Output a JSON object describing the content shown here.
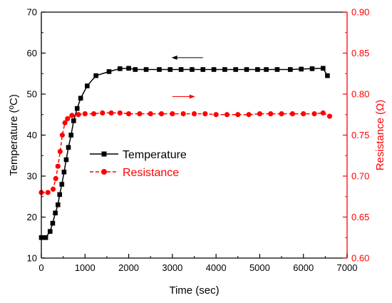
{
  "chart_data": {
    "type": "line",
    "title": "",
    "xlabel": "Time (sec)",
    "ylabel_left": "Temperature (ºC)",
    "ylabel_right": "Resistance (Ω)",
    "xlim": [
      0,
      7000
    ],
    "ylim_left": [
      10,
      70
    ],
    "ylim_right": [
      0.6,
      0.9
    ],
    "x_ticks": [
      0,
      1000,
      2000,
      3000,
      4000,
      5000,
      6000,
      7000
    ],
    "y_left_ticks": [
      10,
      20,
      30,
      40,
      50,
      60,
      70
    ],
    "y_right_ticks": [
      "0.60",
      "0.65",
      "0.70",
      "0.75",
      "0.80",
      "0.85",
      "0.90"
    ],
    "grid": false,
    "legend_position": "center-left",
    "colors": {
      "temperature": "#000000",
      "resistance": "#ff0000"
    },
    "series": [
      {
        "name": "Temperature",
        "axis": "left",
        "marker": "square",
        "color": "#000000",
        "x": [
          0,
          100,
          200,
          260,
          320,
          380,
          420,
          470,
          520,
          570,
          620,
          680,
          740,
          820,
          900,
          1050,
          1250,
          1550,
          1800,
          2000,
          2150,
          2400,
          2700,
          2950,
          3200,
          3450,
          3700,
          3950,
          4200,
          4450,
          4700,
          4950,
          5150,
          5400,
          5700,
          5950,
          6200,
          6450,
          6550
        ],
        "y": [
          15.0,
          15.0,
          16.5,
          18.5,
          21.0,
          23.0,
          25.5,
          28.0,
          31.0,
          34.0,
          37.0,
          40.0,
          43.5,
          46.5,
          49.0,
          52.0,
          54.5,
          55.5,
          56.2,
          56.3,
          56.0,
          56.0,
          56.0,
          56.0,
          56.0,
          56.0,
          56.0,
          56.0,
          56.0,
          56.0,
          56.0,
          56.0,
          56.0,
          56.0,
          56.0,
          56.1,
          56.2,
          56.3,
          54.5
        ]
      },
      {
        "name": "Resistance",
        "axis": "right",
        "marker": "circle",
        "color": "#ff0000",
        "x": [
          0,
          150,
          270,
          330,
          380,
          430,
          480,
          540,
          600,
          700,
          850,
          1000,
          1200,
          1400,
          1600,
          1800,
          2000,
          2250,
          2500,
          2750,
          3000,
          3250,
          3500,
          3750,
          4000,
          4250,
          4500,
          4750,
          5000,
          5250,
          5500,
          5750,
          6000,
          6250,
          6450,
          6600
        ],
        "y": [
          0.68,
          0.68,
          0.684,
          0.697,
          0.712,
          0.73,
          0.75,
          0.765,
          0.77,
          0.774,
          0.775,
          0.776,
          0.776,
          0.777,
          0.777,
          0.777,
          0.776,
          0.776,
          0.776,
          0.776,
          0.776,
          0.776,
          0.776,
          0.776,
          0.775,
          0.775,
          0.775,
          0.775,
          0.776,
          0.776,
          0.776,
          0.776,
          0.776,
          0.776,
          0.777,
          0.773
        ]
      }
    ]
  }
}
